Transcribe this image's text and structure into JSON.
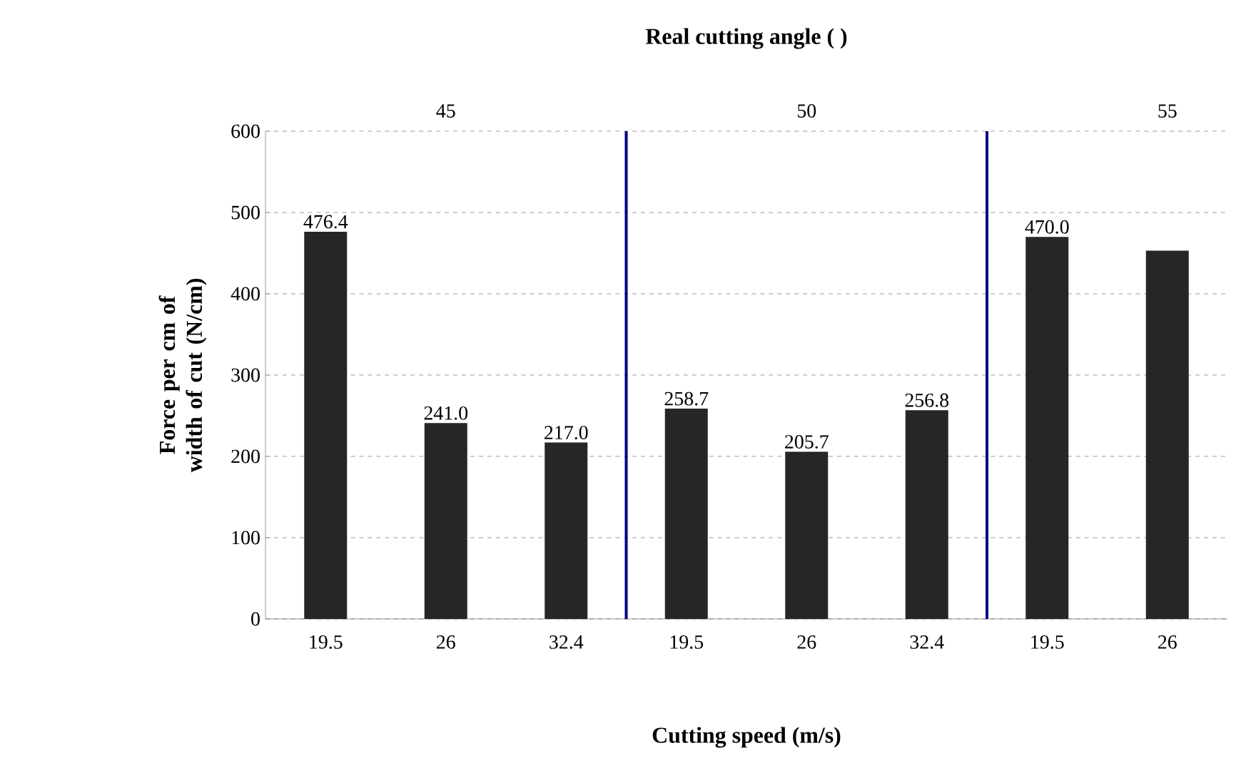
{
  "chart_data": {
    "type": "bar",
    "title": "Real cutting angle ( )",
    "xlabel": "Cutting speed (m/s)",
    "ylabel": "Force per cm of width of cut (N/cm)",
    "categories": [
      "19.5",
      "26",
      "32.4",
      "19.5",
      "26",
      "32.4",
      "19.5",
      "26"
    ],
    "values": [
      476.4,
      241.0,
      217.0,
      258.7,
      205.7,
      256.8,
      470.0,
      453
    ],
    "value_labels": [
      "476.4",
      "241.0",
      "217.0",
      "258.7",
      "205.7",
      "256.8",
      "470.0",
      null
    ],
    "color": "#262626",
    "ylim": [
      0,
      600
    ],
    "yticks": [
      0,
      100,
      200,
      300,
      400,
      500,
      600
    ],
    "grid": "y",
    "annotations": [
      "45",
      "50",
      "55"
    ]
  }
}
